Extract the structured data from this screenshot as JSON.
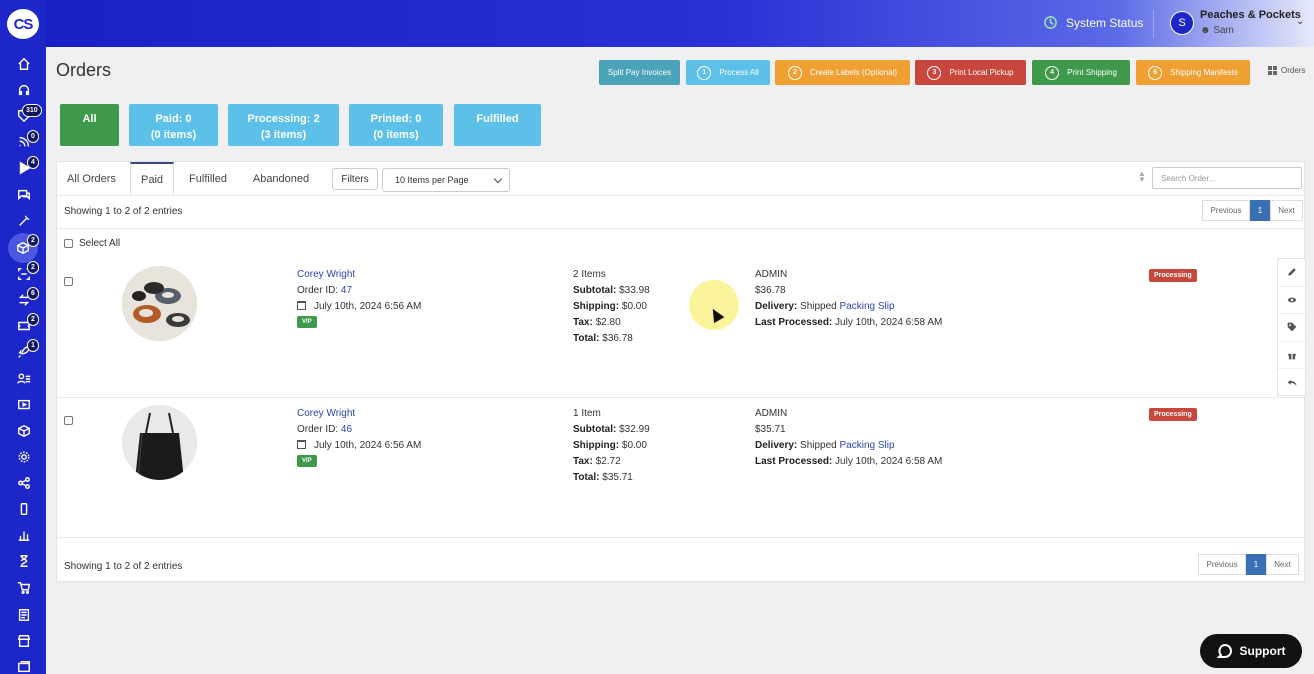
{
  "logo": "CS",
  "sidebar": {
    "badges": [
      "310",
      "0",
      "4",
      "2",
      "2",
      "6",
      "2",
      "1"
    ]
  },
  "header": {
    "system_status": "System Status",
    "user_name": "Peaches & Pockets",
    "user_sub": "Sam",
    "avatar_initial": "S"
  },
  "page_title": "Orders",
  "actions": [
    {
      "label": "Split Pay Invoices",
      "num": "",
      "color": "#4aa3b8"
    },
    {
      "label": "Process All",
      "num": "1",
      "color": "#5cc0e8"
    },
    {
      "label": "Create Labels (Optional)",
      "num": "2",
      "color": "#f0a033"
    },
    {
      "label": "Print Local Pickup",
      "num": "3",
      "color": "#c9463d"
    },
    {
      "label": "Print Shipping",
      "num": "4",
      "color": "#3e9a4a"
    },
    {
      "label": "Shipping Manifests",
      "num": "6",
      "color": "#f0a033"
    }
  ],
  "breadcrumb": "Orders",
  "stats": [
    {
      "line1": "All",
      "line2": "",
      "color": "#3e9a4a"
    },
    {
      "line1": "Paid: 0",
      "line2": "(0 items)",
      "color": "#5cc0e8"
    },
    {
      "line1": "Processing: 2",
      "line2": "(3 items)",
      "color": "#5cc0e8"
    },
    {
      "line1": "Printed: 0",
      "line2": "(0 items)",
      "color": "#5cc0e8"
    },
    {
      "line1": "Fulfilled",
      "line2": "",
      "color": "#5cc0e8"
    }
  ],
  "tabs": [
    "All Orders",
    "Paid",
    "Fulfilled",
    "Abandoned"
  ],
  "filters_label": "Filters",
  "per_page": "10 Items per Page",
  "search_placeholder": "Search Order...",
  "showing": "Showing 1 to 2 of 2 entries",
  "pager": {
    "prev": "Previous",
    "page": "1",
    "next": "Next"
  },
  "select_all": "Select All",
  "orders": [
    {
      "customer": "Corey Wright",
      "order_id_label": "Order ID:",
      "order_id": "47",
      "date": "July 10th, 2024 6:56 AM",
      "vip": "VIP",
      "items": "2 Items",
      "subtotal_label": "Subtotal:",
      "subtotal": "$33.98",
      "shipping_label": "Shipping:",
      "shipping": "$0.00",
      "tax_label": "Tax:",
      "tax": "$2.80",
      "total_label": "Total:",
      "total": "$36.78",
      "processed_by": "ADMIN",
      "amount": "$36.78",
      "delivery_label": "Delivery:",
      "delivery": "Shipped",
      "packing_slip": "Packing Slip",
      "last_processed_label": "Last Processed:",
      "last_processed": "July 10th, 2024 6:58 AM",
      "status": "Processing"
    },
    {
      "customer": "Corey Wright",
      "order_id_label": "Order ID:",
      "order_id": "46",
      "date": "July 10th, 2024 6:56 AM",
      "vip": "VIP",
      "items": "1 Item",
      "subtotal_label": "Subtotal:",
      "subtotal": "$32.99",
      "shipping_label": "Shipping:",
      "shipping": "$0.00",
      "tax_label": "Tax:",
      "tax": "$2.72",
      "total_label": "Total:",
      "total": "$35.71",
      "processed_by": "ADMIN",
      "amount": "$35.71",
      "delivery_label": "Delivery:",
      "delivery": "Shipped",
      "packing_slip": "Packing Slip",
      "last_processed_label": "Last Processed:",
      "last_processed": "July 10th, 2024 6:58 AM",
      "status": "Processing"
    }
  ],
  "row_actions": [
    "edit-icon",
    "eye-icon",
    "tag-icon",
    "gift-icon",
    "undo-icon"
  ],
  "support_label": "Support"
}
